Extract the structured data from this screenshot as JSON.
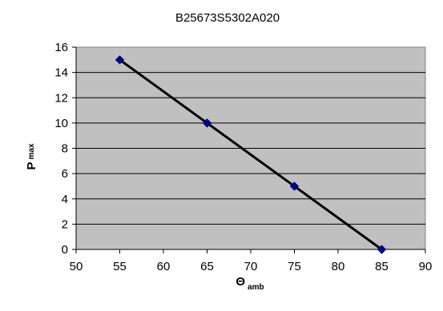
{
  "chart_data": {
    "type": "line",
    "title": "B25673S5302A020",
    "xlabel": {
      "main": "Θ",
      "subscript": "amb"
    },
    "ylabel": {
      "main": "P",
      "subscript": "max"
    },
    "x": [
      55,
      65,
      75,
      85
    ],
    "series": [
      {
        "values": [
          15,
          10,
          5,
          0
        ]
      }
    ],
    "xlim": [
      50,
      90
    ],
    "ylim": [
      0,
      16
    ],
    "xticks": [
      "50",
      "55",
      "60",
      "65",
      "70",
      "75",
      "80",
      "85",
      "90"
    ],
    "yticks": [
      "0",
      "2",
      "4",
      "6",
      "8",
      "10",
      "12",
      "14",
      "16"
    ],
    "grid": "horizontal",
    "legend": "none",
    "colors": {
      "plot_background": "#c0c0c0",
      "line": "#000000",
      "marker": "#000080",
      "grid": "#000000"
    }
  }
}
